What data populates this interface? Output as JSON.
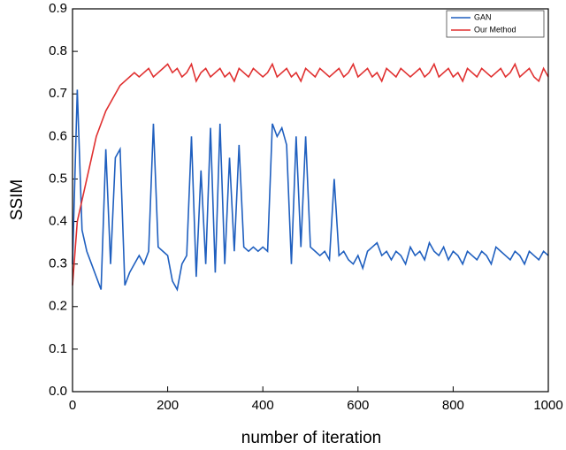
{
  "chart_data": {
    "type": "line",
    "xlabel": "number of iteration",
    "ylabel": "SSIM",
    "x": [
      0,
      10,
      20,
      30,
      40,
      50,
      60,
      70,
      80,
      90,
      100,
      110,
      120,
      130,
      140,
      150,
      160,
      170,
      180,
      190,
      200,
      210,
      220,
      230,
      240,
      250,
      260,
      270,
      280,
      290,
      300,
      310,
      320,
      330,
      340,
      350,
      360,
      370,
      380,
      390,
      400,
      410,
      420,
      430,
      440,
      450,
      460,
      470,
      480,
      490,
      500,
      510,
      520,
      530,
      540,
      550,
      560,
      570,
      580,
      590,
      600,
      610,
      620,
      630,
      640,
      650,
      660,
      670,
      680,
      690,
      700,
      710,
      720,
      730,
      740,
      750,
      760,
      770,
      780,
      790,
      800,
      810,
      820,
      830,
      840,
      850,
      860,
      870,
      880,
      890,
      900,
      910,
      920,
      930,
      940,
      950,
      960,
      970,
      980,
      990,
      1000
    ],
    "series": [
      {
        "name": "GAN",
        "color": "#1f5fbf",
        "values": [
          0.3,
          0.71,
          0.38,
          0.33,
          0.3,
          0.27,
          0.24,
          0.57,
          0.3,
          0.55,
          0.57,
          0.25,
          0.28,
          0.3,
          0.32,
          0.3,
          0.33,
          0.63,
          0.34,
          0.33,
          0.32,
          0.26,
          0.24,
          0.3,
          0.32,
          0.6,
          0.27,
          0.52,
          0.3,
          0.62,
          0.28,
          0.63,
          0.3,
          0.55,
          0.33,
          0.58,
          0.34,
          0.33,
          0.34,
          0.33,
          0.34,
          0.33,
          0.63,
          0.6,
          0.62,
          0.58,
          0.3,
          0.6,
          0.34,
          0.6,
          0.34,
          0.33,
          0.32,
          0.33,
          0.31,
          0.5,
          0.32,
          0.33,
          0.31,
          0.3,
          0.32,
          0.29,
          0.33,
          0.34,
          0.35,
          0.32,
          0.33,
          0.31,
          0.33,
          0.32,
          0.3,
          0.34,
          0.32,
          0.33,
          0.31,
          0.35,
          0.33,
          0.32,
          0.34,
          0.31,
          0.33,
          0.32,
          0.3,
          0.33,
          0.32,
          0.31,
          0.33,
          0.32,
          0.3,
          0.34,
          0.33,
          0.32,
          0.31,
          0.33,
          0.32,
          0.3,
          0.33,
          0.32,
          0.31,
          0.33,
          0.32
        ]
      },
      {
        "name": "Our Method",
        "color": "#e03030",
        "values": [
          0.25,
          0.4,
          0.45,
          0.5,
          0.55,
          0.6,
          0.63,
          0.66,
          0.68,
          0.7,
          0.72,
          0.73,
          0.74,
          0.75,
          0.74,
          0.75,
          0.76,
          0.74,
          0.75,
          0.76,
          0.77,
          0.75,
          0.76,
          0.74,
          0.75,
          0.77,
          0.73,
          0.75,
          0.76,
          0.74,
          0.75,
          0.76,
          0.74,
          0.75,
          0.73,
          0.76,
          0.75,
          0.74,
          0.76,
          0.75,
          0.74,
          0.75,
          0.77,
          0.74,
          0.75,
          0.76,
          0.74,
          0.75,
          0.73,
          0.76,
          0.75,
          0.74,
          0.76,
          0.75,
          0.74,
          0.75,
          0.76,
          0.74,
          0.75,
          0.77,
          0.74,
          0.75,
          0.76,
          0.74,
          0.75,
          0.73,
          0.76,
          0.75,
          0.74,
          0.76,
          0.75,
          0.74,
          0.75,
          0.76,
          0.74,
          0.75,
          0.77,
          0.74,
          0.75,
          0.76,
          0.74,
          0.75,
          0.73,
          0.76,
          0.75,
          0.74,
          0.76,
          0.75,
          0.74,
          0.75,
          0.76,
          0.74,
          0.75,
          0.77,
          0.74,
          0.75,
          0.76,
          0.74,
          0.73,
          0.76,
          0.74
        ]
      }
    ],
    "xlim": [
      0,
      1000
    ],
    "xticks": [
      0,
      200,
      400,
      600,
      800,
      1000
    ],
    "ylim": [
      0,
      0.9
    ],
    "yticks": [
      {
        "value": 0,
        "label": "0.0"
      },
      0.1,
      0.2,
      0.3,
      0.4,
      0.5,
      0.6,
      0.7,
      0.8,
      0.9
    ],
    "legend": "upper right"
  }
}
